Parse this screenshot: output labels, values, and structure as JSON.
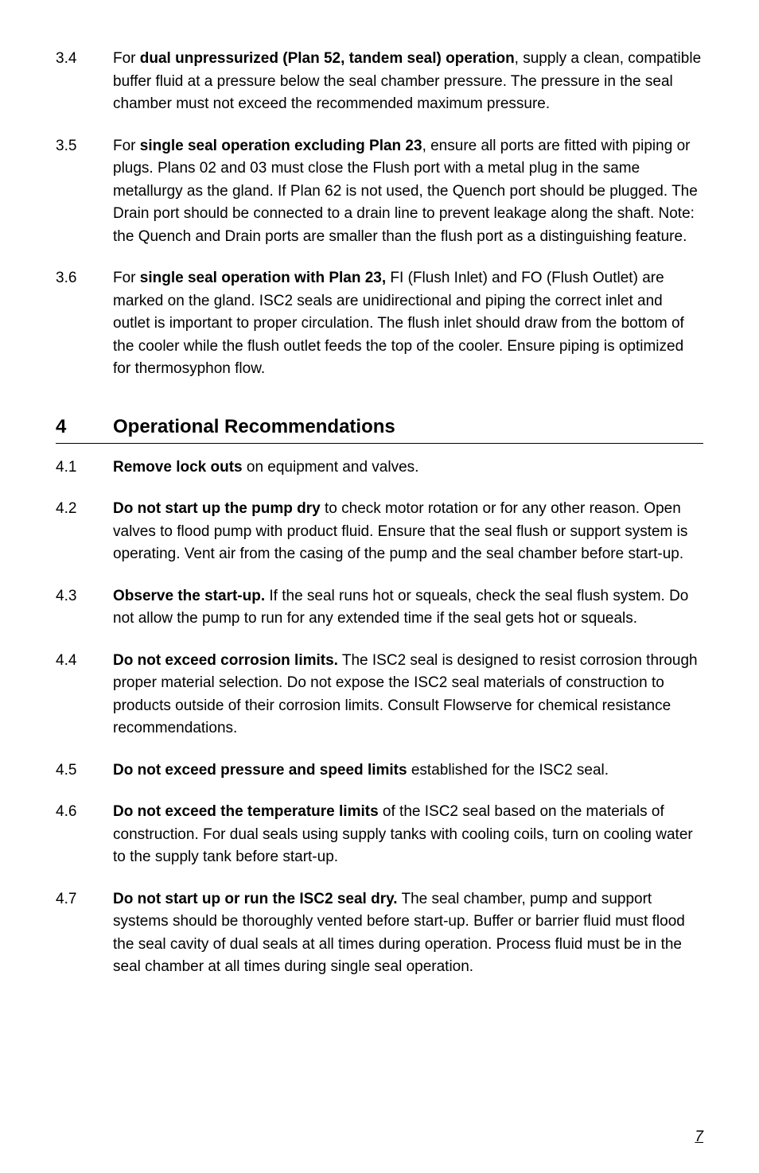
{
  "items1": [
    {
      "num": "3.4",
      "segments": [
        {
          "text": "For ",
          "bold": false
        },
        {
          "text": "dual unpressurized (Plan 52, tandem seal) operation",
          "bold": true
        },
        {
          "text": ", supply a clean, compatible buffer fluid at a pressure below the seal chamber pressure. The pressure in the seal chamber must not exceed the recommended maximum pressure.",
          "bold": false
        }
      ]
    },
    {
      "num": "3.5",
      "segments": [
        {
          "text": "For ",
          "bold": false
        },
        {
          "text": "single seal operation excluding Plan 23",
          "bold": true
        },
        {
          "text": ", ensure all ports are fitted with piping or plugs. Plans 02 and 03 must close the Flush port with a metal plug in the same metallurgy as the gland. If Plan 62 is not used, the Quench port should be plugged. The Drain port should be connected to a drain line to prevent leakage along the shaft. Note: the Quench and Drain ports are smaller than the flush port as a distinguishing feature.",
          "bold": false
        }
      ]
    },
    {
      "num": "3.6",
      "segments": [
        {
          "text": "For ",
          "bold": false
        },
        {
          "text": "single seal operation with Plan 23,",
          "bold": true
        },
        {
          "text": " FI (Flush Inlet) and FO (Flush Outlet) are marked on the gland. ISC2 seals are unidirectional and piping the correct inlet and outlet is important to proper circulation. The flush inlet should draw from the bottom of the cooler while the flush outlet feeds the top of the cooler. Ensure piping is optimized for thermosyphon flow.",
          "bold": false
        }
      ]
    }
  ],
  "heading": {
    "num": "4",
    "title": "Operational Recommendations"
  },
  "items2": [
    {
      "num": "4.1",
      "segments": [
        {
          "text": "Remove lock outs",
          "bold": true
        },
        {
          "text": " on equipment and valves.",
          "bold": false
        }
      ]
    },
    {
      "num": "4.2",
      "segments": [
        {
          "text": "Do not start up the pump dry",
          "bold": true
        },
        {
          "text": " to check motor rotation or for any other reason. Open valves to flood pump with product fluid. Ensure that the seal flush or support system is operating. Vent air from the casing of the pump and the seal chamber before start-up.",
          "bold": false
        }
      ]
    },
    {
      "num": "4.3",
      "segments": [
        {
          "text": "Observe the start-up.",
          "bold": true
        },
        {
          "text": " If the seal runs hot or squeals, check the seal flush system. Do not allow the pump to run for any extended time if the seal gets hot or squeals.",
          "bold": false
        }
      ]
    },
    {
      "num": "4.4",
      "segments": [
        {
          "text": "Do not exceed corrosion limits.",
          "bold": true
        },
        {
          "text": " The ISC2 seal is designed to resist corrosion through proper material selection. Do not expose the ISC2 seal materials of construction to products outside of their corrosion limits. Consult Flowserve for chemical resistance recommendations.",
          "bold": false
        }
      ]
    },
    {
      "num": "4.5",
      "segments": [
        {
          "text": "Do not exceed pressure and speed limits",
          "bold": true
        },
        {
          "text": " established for the ISC2 seal.",
          "bold": false
        }
      ]
    },
    {
      "num": "4.6",
      "segments": [
        {
          "text": "Do not exceed the temperature limits",
          "bold": true
        },
        {
          "text": " of the ISC2 seal based on the materials of construction. For dual seals using supply tanks with cooling coils, turn on cooling water to the supply tank before start-up.",
          "bold": false
        }
      ]
    },
    {
      "num": "4.7",
      "segments": [
        {
          "text": "Do not start up or run the ISC2 seal dry.",
          "bold": true
        },
        {
          "text": " The seal chamber, pump and support systems should be thoroughly vented before start-up. Buffer or barrier fluid must flood the seal cavity of dual seals at all times during operation. Process fluid must be in the seal chamber at all times during single seal operation.",
          "bold": false
        }
      ]
    }
  ],
  "page_number": "7"
}
